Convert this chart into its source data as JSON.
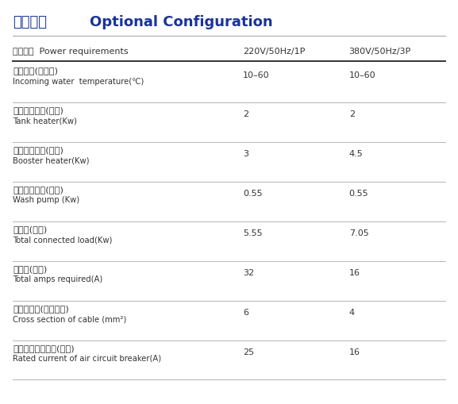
{
  "title_cn": "可选配置",
  "title_en": "Optional Configuration",
  "title_color": "#1a3399",
  "header_row": {
    "col0": "电源要求  Power requirements",
    "col1": "220V/50Hz/1P",
    "col2": "380V/50Hz/3P"
  },
  "rows": [
    {
      "cn": "进水温度(摄氏度)",
      "en": "Incoming water  temperature(℃)",
      "val1": "10–60",
      "val2": "10–60"
    },
    {
      "cn": "水槽加热功率(千瓦)",
      "en": "Tank heater(Kw)",
      "val1": "2",
      "val2": "2"
    },
    {
      "cn": "漂洗加热功率(千瓦)",
      "en": "Booster heater(Kw)",
      "val1": "3",
      "val2": "4.5"
    },
    {
      "cn": "清洗水泵功率(千瓦)",
      "en": "Wash pump (Kw)",
      "val1": "0.55",
      "val2": "0.55"
    },
    {
      "cn": "总功率(千瓦)",
      "en": "Total connected load(Kw)",
      "val1": "5.55",
      "val2": "7.05"
    },
    {
      "cn": "总电流(安培)",
      "en": "Total amps required(A)",
      "val1": "32",
      "val2": "16"
    },
    {
      "cn": "电源线截面(平方毫米)",
      "en": "Cross section of cable (mm²)",
      "val1": "6",
      "val2": "4"
    },
    {
      "cn": "空气开关额定电流(安培)",
      "en": "Rated current of air circuit breaker(A)",
      "val1": "25",
      "val2": "16"
    }
  ],
  "bg_color": "#ffffff",
  "text_color": "#333333",
  "line_color": "#aaaaaa",
  "header_line_color": "#555555"
}
